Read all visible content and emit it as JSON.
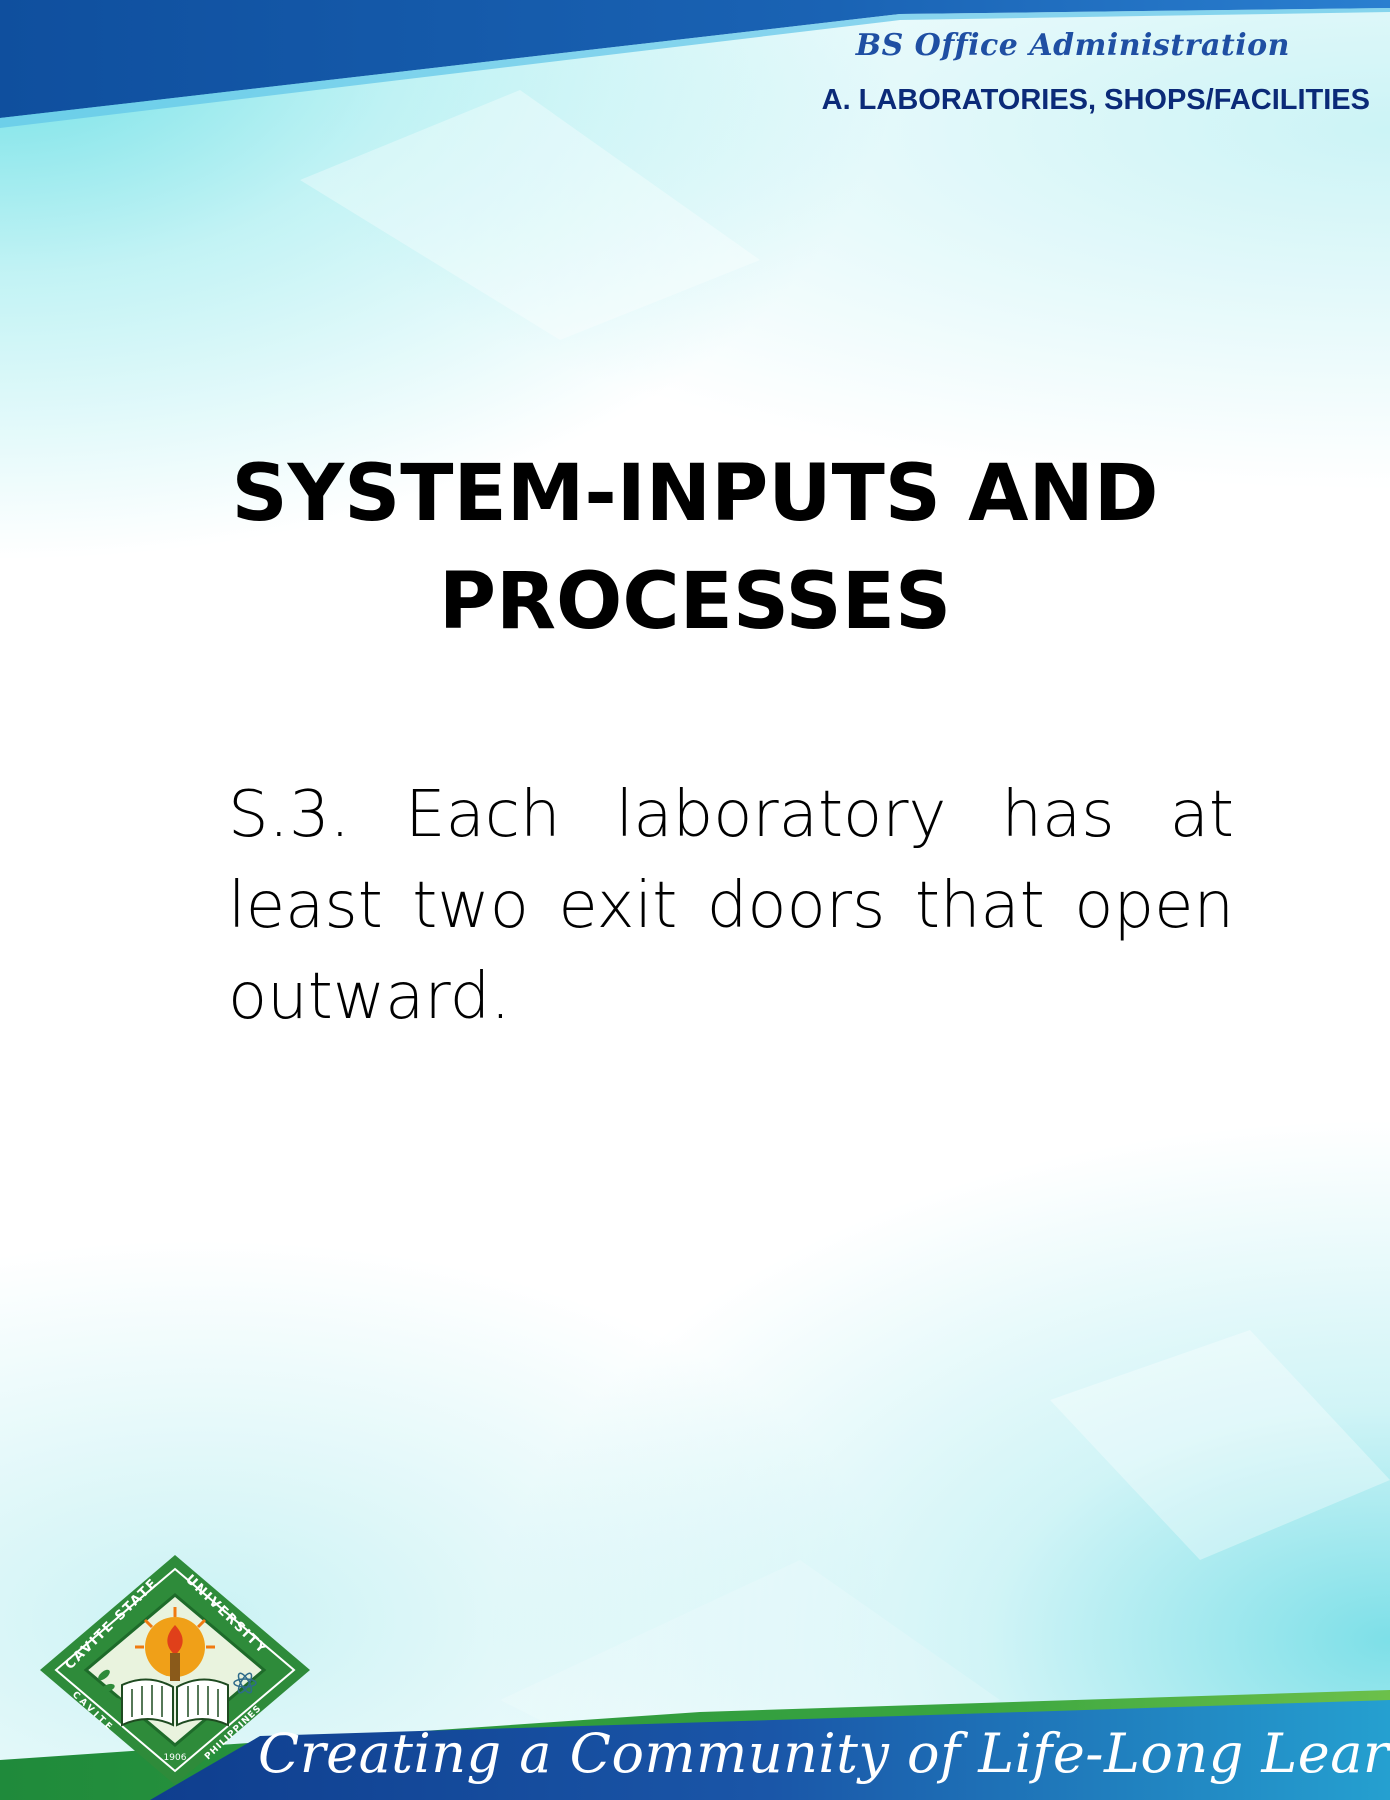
{
  "header": {
    "program": "BS Office Administration",
    "section": "A. LABORATORIES, SHOPS/FACILITIES"
  },
  "title": {
    "line1": "SYSTEM-INPUTS AND",
    "line2": "PROCESSES"
  },
  "body": {
    "statement": "S.3. Each laboratory has at least two exit doors that open outward."
  },
  "logo": {
    "top_text": "CAVITE STATE",
    "right_text": "UNIVERSITY",
    "bottom_left_text": "CAVITE",
    "bottom_right_text": "PHILIPPINES",
    "year": "1906"
  },
  "footer": {
    "motto": "Creating a Community of Life-Long Learners"
  },
  "colors": {
    "header_program": "#1f4fa3",
    "header_section": "#0b2a78",
    "top_band": "#1557a8",
    "bottom_band": "#1a4fa0",
    "logo_green": "#2e8b3a"
  }
}
